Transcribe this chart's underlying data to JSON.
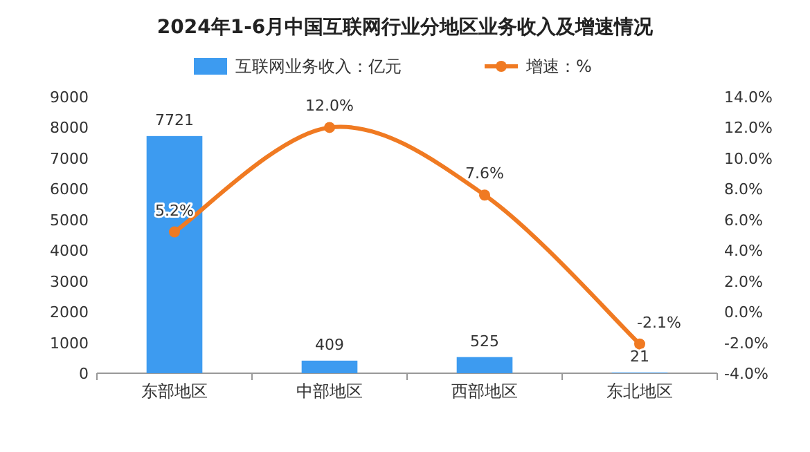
{
  "chart_data": {
    "type": "bar",
    "title": "2024年1-6月中国互联网行业分地区业务收入及增速情况",
    "categories": [
      "东部地区",
      "中部地区",
      "西部地区",
      "东北地区"
    ],
    "series": [
      {
        "name": "互联网业务收入：亿元",
        "color": "#3d9bf0",
        "values": [
          7721,
          409,
          525,
          21
        ],
        "value_labels": [
          "7721",
          "409",
          "525",
          "21"
        ]
      },
      {
        "name": "增速：%",
        "type": "line",
        "axis": "y2",
        "color": "#f07a22",
        "values": [
          5.2,
          12.0,
          7.6,
          -2.1
        ],
        "value_labels": [
          "5.2%",
          "12.0%",
          "7.6%",
          "-2.1%"
        ]
      }
    ],
    "ylim": [
      0,
      9000
    ],
    "yticks": [
      0,
      1000,
      2000,
      3000,
      4000,
      5000,
      6000,
      7000,
      8000,
      9000
    ],
    "y2lim": [
      -4,
      14
    ],
    "y2ticks": [
      {
        "value": -4,
        "label": "-4.0%"
      },
      {
        "value": -2,
        "label": "-2.0%"
      },
      {
        "value": 0,
        "label": "0.0%"
      },
      {
        "value": 2,
        "label": "2.0%"
      },
      {
        "value": 4,
        "label": "4.0%"
      },
      {
        "value": 6,
        "label": "6.0%"
      },
      {
        "value": 8,
        "label": "8.0%"
      },
      {
        "value": 10,
        "label": "10.0%"
      },
      {
        "value": 12,
        "label": "12.0%"
      },
      {
        "value": 14,
        "label": "14.0%"
      }
    ],
    "legend": "top",
    "marker": "circle",
    "line_style": "solid",
    "grid": false
  }
}
